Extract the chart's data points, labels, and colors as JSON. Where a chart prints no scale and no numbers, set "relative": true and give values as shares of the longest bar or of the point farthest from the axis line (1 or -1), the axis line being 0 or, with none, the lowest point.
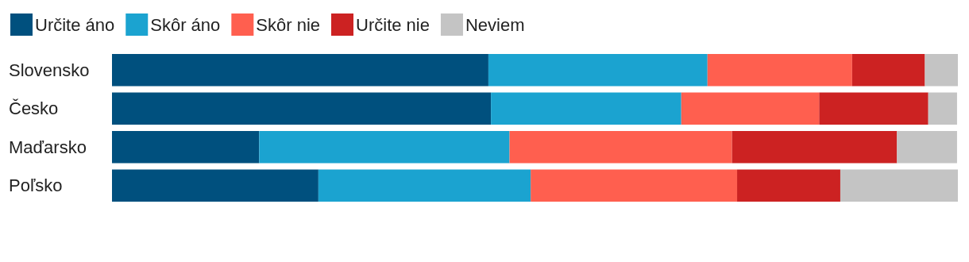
{
  "chart_data": {
    "type": "bar",
    "orientation": "horizontal",
    "stacked": true,
    "relative": true,
    "legend": "top left",
    "categories": [
      "Slovensko",
      "Česko",
      "Maďarsko",
      "Poľsko"
    ],
    "series": [
      {
        "name": "Určite áno",
        "color": "#00507e",
        "values": [
          0.445,
          0.448,
          0.174,
          0.244
        ]
      },
      {
        "name": "Skôr áno",
        "color": "#1ba3d0",
        "values": [
          0.259,
          0.225,
          0.296,
          0.251
        ]
      },
      {
        "name": "Skôr nie",
        "color": "#ff5f4f",
        "values": [
          0.171,
          0.163,
          0.263,
          0.244
        ]
      },
      {
        "name": "Určite nie",
        "color": "#cc2222",
        "values": [
          0.086,
          0.129,
          0.195,
          0.122
        ]
      },
      {
        "name": "Neviem",
        "color": "#c4c4c4",
        "values": [
          0.039,
          0.034,
          0.071,
          0.139
        ]
      }
    ]
  }
}
